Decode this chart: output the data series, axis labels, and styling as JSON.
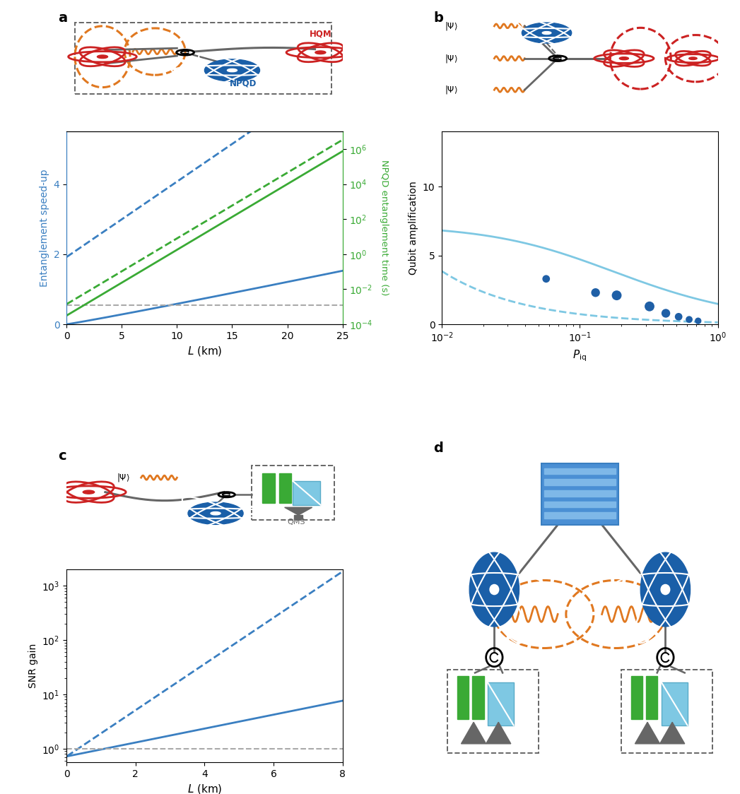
{
  "panel_a": {
    "xlim": [
      0,
      25
    ],
    "ylim_left": [
      0,
      5.5
    ],
    "xlabel": "$L$ (km)",
    "ylabel_left": "Entanglement speed-up",
    "ylabel_right": "NPQD entanglement time (s)",
    "blue_color": "#3a7fc1",
    "green_color": "#3aaa35",
    "gray_color": "#aaaaaa",
    "yticks_left": [
      0,
      2,
      4
    ],
    "gray_line_y": 0.55
  },
  "panel_b": {
    "xlim": [
      0.01,
      1.0
    ],
    "ylim": [
      0,
      14
    ],
    "xlabel": "$P_{\\mathrm{iq}}$",
    "ylabel": "Qubit amplification",
    "light_blue": "#7ec8e3",
    "dark_blue": "#1f5fa6",
    "dot_x": [
      0.057,
      0.13,
      0.185,
      0.32,
      0.42,
      0.52,
      0.62,
      0.72
    ],
    "dot_y": [
      3.3,
      2.3,
      2.1,
      1.3,
      0.8,
      0.55,
      0.35,
      0.25
    ],
    "dot_sizes": [
      60,
      80,
      100,
      100,
      80,
      60,
      50,
      45
    ],
    "yticks": [
      0,
      5,
      10
    ]
  },
  "panel_c": {
    "xlim": [
      0,
      8
    ],
    "xlabel": "$L$ (km)",
    "ylabel": "SNR gain",
    "blue_color": "#3a7fc1",
    "gray_color": "#aaaaaa",
    "xticks": [
      0,
      2,
      4,
      6,
      8
    ],
    "gray_line_y": 1.0
  },
  "colors": {
    "blue": "#1a5fa8",
    "blue_light": "#3a7fc1",
    "green": "#3aaa35",
    "light_blue": "#7ec8e3",
    "dark_blue": "#1f5fa6",
    "gray": "#aaaaaa",
    "gray_dark": "#666666",
    "orange": "#e07820",
    "red": "#cc2222",
    "white": "#ffffff"
  }
}
